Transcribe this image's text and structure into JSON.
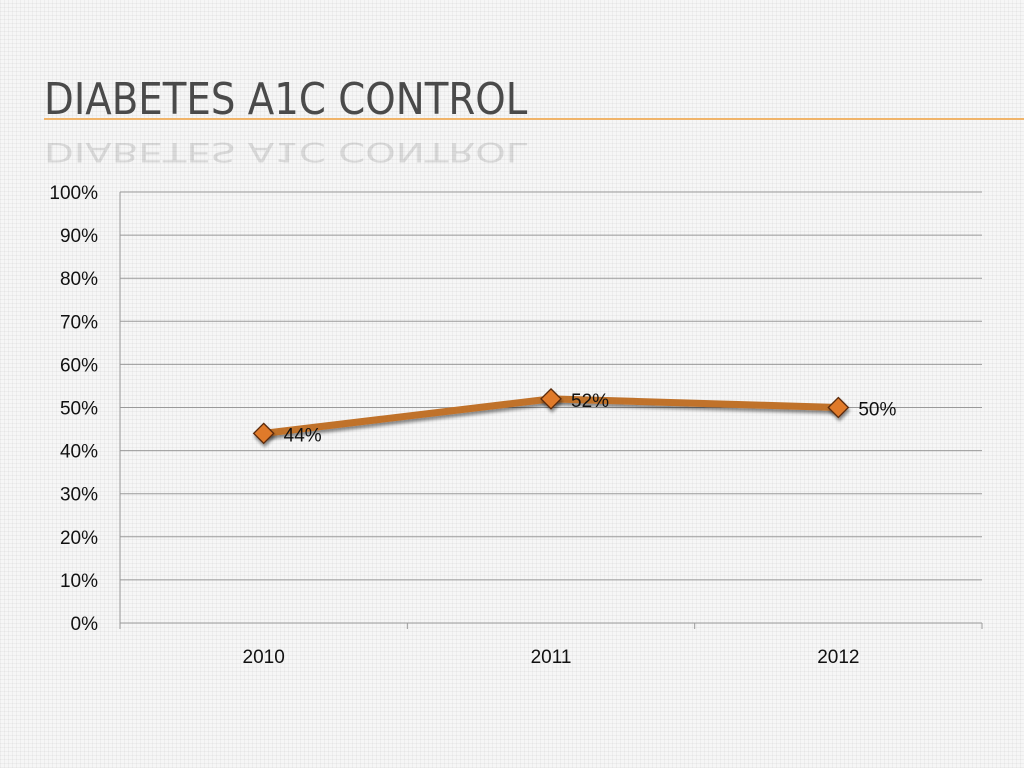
{
  "slide": {
    "title": "DIABETES A1C CONTROL"
  },
  "colors": {
    "line": "#c0722c",
    "marker": "#e07a2c",
    "marker_stroke": "#5a2a0a",
    "grid": "#9a9a9a",
    "title_rule": "#f0b46a"
  },
  "chart_data": {
    "type": "line",
    "title": "",
    "xlabel": "",
    "ylabel": "",
    "categories": [
      "2010",
      "2011",
      "2012"
    ],
    "series": [
      {
        "values": [
          44,
          52,
          50
        ],
        "data_labels": [
          "44%",
          "52%",
          "50%"
        ]
      }
    ],
    "ylim": [
      0,
      100
    ],
    "y_ticks": [
      0,
      10,
      20,
      30,
      40,
      50,
      60,
      70,
      80,
      90,
      100
    ],
    "y_tick_labels": [
      "0%",
      "10%",
      "20%",
      "30%",
      "40%",
      "50%",
      "60%",
      "70%",
      "80%",
      "90%",
      "100%"
    ],
    "grid": true,
    "legend": "none",
    "marker": "diamond"
  }
}
